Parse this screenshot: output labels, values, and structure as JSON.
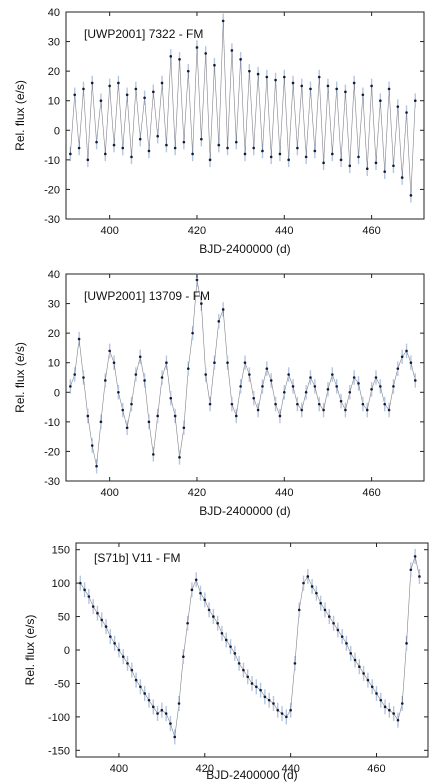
{
  "chart_data": [
    {
      "type": "scatter",
      "title": "[UWP2001] 7322 - FM",
      "xlabel": "BJD-2400000 (d)",
      "ylabel": "Rel. flux (e/s)",
      "xlim": [
        390,
        472
      ],
      "ylim": [
        -30,
        40
      ],
      "xticks": [
        400,
        420,
        440,
        460
      ],
      "yticks": [
        -30,
        -20,
        -10,
        0,
        10,
        20,
        30,
        40
      ],
      "point_color": "#1a1a2e",
      "errorbar_color": "#b3c6e0",
      "grid": false,
      "x": [
        391,
        392,
        393,
        394,
        395,
        396,
        397,
        398,
        399,
        400,
        401,
        402,
        403,
        404,
        405,
        406,
        407,
        408,
        409,
        410,
        411,
        412,
        413,
        414,
        415,
        416,
        417,
        418,
        419,
        420,
        421,
        422,
        423,
        424,
        425,
        426,
        427,
        428,
        429,
        430,
        431,
        432,
        433,
        434,
        435,
        436,
        437,
        438,
        439,
        440,
        441,
        442,
        443,
        444,
        445,
        446,
        447,
        448,
        449,
        450,
        451,
        452,
        453,
        454,
        455,
        456,
        457,
        458,
        459,
        460,
        461,
        462,
        463,
        464,
        465,
        466,
        467,
        468,
        469,
        470
      ],
      "y": [
        -8,
        12,
        -6,
        14,
        -10,
        16,
        -4,
        10,
        -8,
        15,
        -5,
        16,
        -6,
        12,
        -9,
        14,
        -3,
        11,
        -7,
        13,
        -2,
        16,
        -5,
        25,
        -6,
        24,
        -4,
        20,
        -8,
        28,
        -3,
        26,
        -10,
        22,
        -5,
        37,
        -6,
        27,
        -4,
        24,
        -8,
        20,
        -6,
        19,
        -7,
        18,
        -9,
        17,
        -8,
        18,
        -10,
        16,
        -6,
        15,
        -9,
        14,
        -7,
        18,
        -11,
        15,
        -8,
        14,
        -10,
        13,
        -12,
        16,
        -9,
        12,
        -13,
        15,
        -11,
        10,
        -14,
        14,
        -12,
        8,
        -16,
        6,
        -22,
        10
      ],
      "series": [
        {
          "values_note": "",
          "values": []
        }
      ]
    },
    {
      "type": "scatter",
      "title": "[UWP2001] 13709 - FM",
      "xlabel": "BJD-2400000 (d)",
      "ylabel": "Rel. flux (e/s)",
      "xlim": [
        390,
        472
      ],
      "ylim": [
        -30,
        40
      ],
      "xticks": [
        400,
        420,
        440,
        460
      ],
      "yticks": [
        -30,
        -20,
        -10,
        0,
        10,
        20,
        30,
        40
      ],
      "point_color": "#1a1a2e",
      "errorbar_color": "#b3c6e0",
      "grid": false,
      "x": [
        391,
        392,
        393,
        394,
        395,
        396,
        397,
        398,
        399,
        400,
        401,
        402,
        403,
        404,
        405,
        406,
        407,
        408,
        409,
        410,
        411,
        412,
        413,
        414,
        415,
        416,
        417,
        418,
        419,
        420,
        421,
        422,
        423,
        424,
        425,
        426,
        427,
        428,
        429,
        430,
        431,
        432,
        433,
        434,
        435,
        436,
        437,
        438,
        439,
        440,
        441,
        442,
        443,
        444,
        445,
        446,
        447,
        448,
        449,
        450,
        451,
        452,
        453,
        454,
        455,
        456,
        457,
        458,
        459,
        460,
        461,
        462,
        463,
        464,
        465,
        466,
        467,
        468,
        469,
        470
      ],
      "y": [
        2,
        6,
        18,
        5,
        -8,
        -18,
        -25,
        -10,
        4,
        14,
        10,
        0,
        -6,
        -12,
        -4,
        6,
        12,
        4,
        -10,
        -21,
        -8,
        5,
        10,
        -2,
        -8,
        -22,
        -12,
        8,
        20,
        38,
        30,
        6,
        -4,
        10,
        24,
        28,
        10,
        -4,
        -8,
        2,
        10,
        6,
        -2,
        -6,
        2,
        8,
        4,
        -4,
        -8,
        0,
        6,
        2,
        -4,
        -6,
        0,
        5,
        2,
        -4,
        -6,
        1,
        6,
        2,
        -3,
        -6,
        0,
        5,
        3,
        -4,
        -6,
        1,
        5,
        2,
        -4,
        -6,
        2,
        8,
        12,
        14,
        10,
        4
      ],
      "series": [
        {
          "values_note": "",
          "values": []
        }
      ]
    },
    {
      "type": "scatter",
      "title": "[S71b] V11 - FM",
      "xlabel": "BJD-2400000 (d)",
      "ylabel": "Rel. flux (e/s)",
      "xlim": [
        390,
        472
      ],
      "ylim": [
        -160,
        160
      ],
      "xticks": [
        400,
        420,
        440,
        460
      ],
      "yticks": [
        -150,
        -100,
        -50,
        0,
        50,
        100,
        150
      ],
      "point_color": "#1a1a2e",
      "errorbar_color": "#b3c6e0",
      "grid": false,
      "x": [
        391,
        392,
        393,
        394,
        395,
        396,
        397,
        398,
        399,
        400,
        401,
        402,
        403,
        404,
        405,
        406,
        407,
        408,
        409,
        410,
        411,
        412,
        413,
        414,
        415,
        416,
        417,
        418,
        419,
        420,
        421,
        422,
        423,
        424,
        425,
        426,
        427,
        428,
        429,
        430,
        431,
        432,
        433,
        434,
        435,
        436,
        437,
        438,
        439,
        440,
        441,
        442,
        443,
        444,
        445,
        446,
        447,
        448,
        449,
        450,
        451,
        452,
        453,
        454,
        455,
        456,
        457,
        458,
        459,
        460,
        461,
        462,
        463,
        464,
        465,
        466,
        467,
        468,
        469,
        470
      ],
      "y": [
        100,
        90,
        80,
        65,
        55,
        45,
        35,
        20,
        10,
        0,
        -10,
        -20,
        -30,
        -45,
        -55,
        -65,
        -75,
        -85,
        -95,
        -90,
        -95,
        -110,
        -130,
        -80,
        -10,
        40,
        90,
        105,
        85,
        75,
        60,
        50,
        40,
        25,
        15,
        5,
        -5,
        -20,
        -30,
        -40,
        -50,
        -55,
        -60,
        -70,
        -75,
        -80,
        -90,
        -95,
        -100,
        -90,
        -20,
        60,
        100,
        110,
        95,
        85,
        70,
        60,
        50,
        40,
        30,
        20,
        10,
        -5,
        -15,
        -25,
        -35,
        -45,
        -55,
        -65,
        -75,
        -85,
        -90,
        -95,
        -105,
        -80,
        10,
        120,
        140,
        110
      ],
      "series": [
        {
          "values_note": "",
          "values": []
        }
      ]
    }
  ]
}
